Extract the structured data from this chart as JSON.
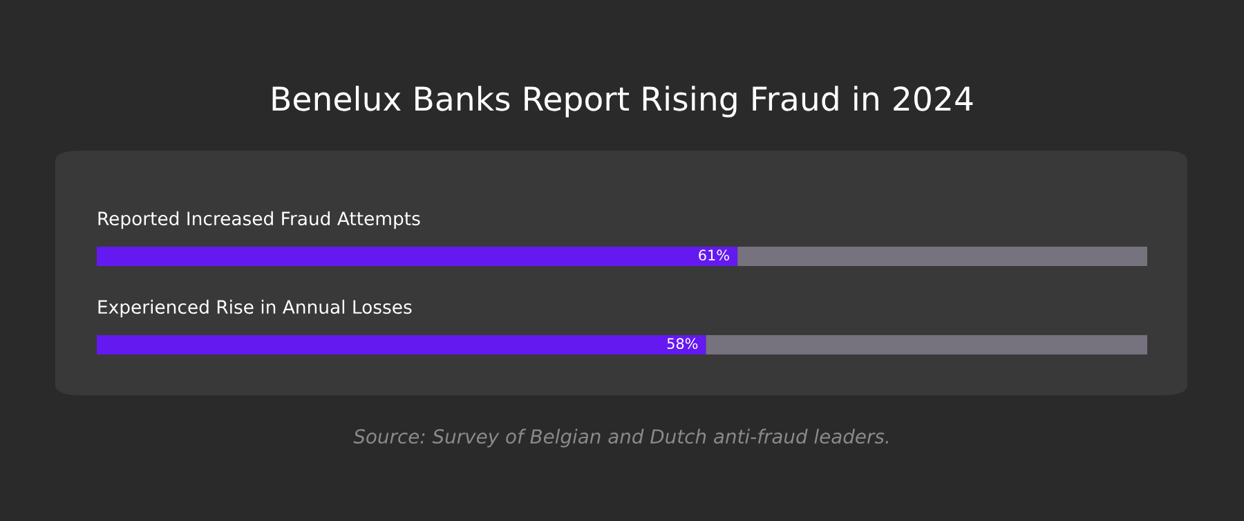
{
  "chart_data": {
    "type": "bar",
    "orientation": "horizontal",
    "stacked": true,
    "title": "Benelux Banks Report Rising Fraud in 2024",
    "categories": [
      "Reported Increased Fraud Attempts",
      "Experienced Rise in Annual Losses"
    ],
    "series": [
      {
        "color": "#6419f0",
        "values": [
          61,
          58
        ],
        "value_labels": [
          "61%",
          "58%"
        ]
      },
      {
        "color": "#76727e",
        "values": [
          39,
          42
        ]
      }
    ],
    "xlim": [
      0,
      100
    ],
    "tick_labels": false,
    "annotations": [
      "Source: Survey of Belgian and Dutch anti-fraud leaders."
    ]
  }
}
